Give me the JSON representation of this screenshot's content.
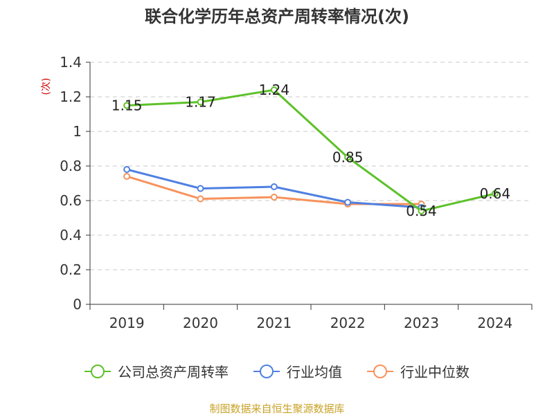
{
  "chart_data": {
    "type": "line",
    "title": "联合化学历年总资产周转率情况(次)",
    "ylabel": "(次)",
    "xlabel": "",
    "categories": [
      "2019",
      "2020",
      "2021",
      "2022",
      "2023",
      "2024"
    ],
    "ylim": [
      0,
      1.4
    ],
    "yticks": [
      "0",
      "0.2",
      "0.4",
      "0.6",
      "0.8",
      "1",
      "1.2",
      "1.4"
    ],
    "grid": true,
    "legend_position": "bottom",
    "series": [
      {
        "name": "公司总资产周转率",
        "color": "#5dc129",
        "values": [
          1.15,
          1.17,
          1.24,
          0.85,
          0.54,
          0.64
        ],
        "data_labels": [
          "1.15",
          "1.17",
          "1.24",
          "0.85",
          "0.54",
          "0.64"
        ]
      },
      {
        "name": "行业均值",
        "color": "#4f80e1",
        "values": [
          0.78,
          0.67,
          0.68,
          0.59,
          0.56,
          null
        ]
      },
      {
        "name": "行业中位数",
        "color": "#f7925c",
        "values": [
          0.74,
          0.61,
          0.62,
          0.58,
          0.58,
          null
        ]
      }
    ],
    "source": "制图数据来自恒生聚源数据库",
    "source_color": "#c9a227"
  }
}
